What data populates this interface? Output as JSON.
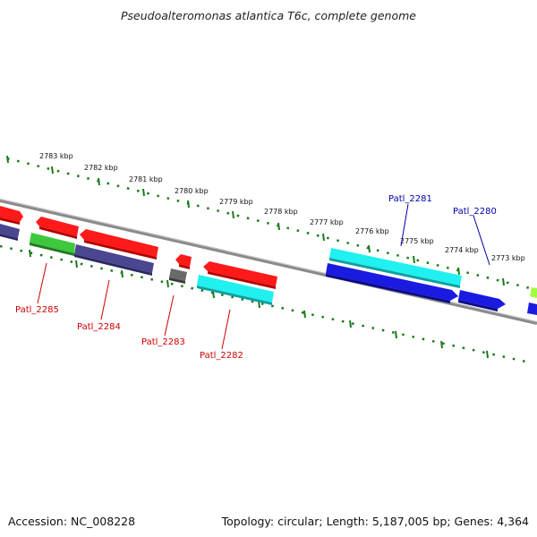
{
  "title": "Pseudoalteromonas atlantica T6c, complete genome",
  "footer": {
    "accession": "Accession: NC_008228",
    "summary": "Topology: circular; Length: 5,187,005 bp; Genes: 4,364"
  },
  "colors": {
    "red": "#ff1a1a",
    "purple": "#4a4690",
    "green": "#3ec83e",
    "cyan": "#20f0f0",
    "blue": "#1a1ae0",
    "gray": "#6a6a6a",
    "lime": "#a0ff40",
    "ruler": "#1a7a1a",
    "genome_line": "#8a8a8a",
    "label_red": "#cc0000",
    "label_blue": "#0000aa"
  },
  "ruler_labels": [
    "2783 kbp",
    "2782 kbp",
    "2781 kbp",
    "2780 kbp",
    "2779 kbp",
    "2778 kbp",
    "2777 kbp",
    "2776 kbp",
    "2775 kbp",
    "2774 kbp",
    "2773 kbp"
  ],
  "gene_labels": [
    {
      "name": "Patl_2285",
      "color": "red"
    },
    {
      "name": "Patl_2284",
      "color": "red"
    },
    {
      "name": "Patl_2283",
      "color": "red"
    },
    {
      "name": "Patl_2282",
      "color": "red"
    },
    {
      "name": "Patl_2281",
      "color": "blue"
    },
    {
      "name": "Patl_2280",
      "color": "blue"
    }
  ]
}
